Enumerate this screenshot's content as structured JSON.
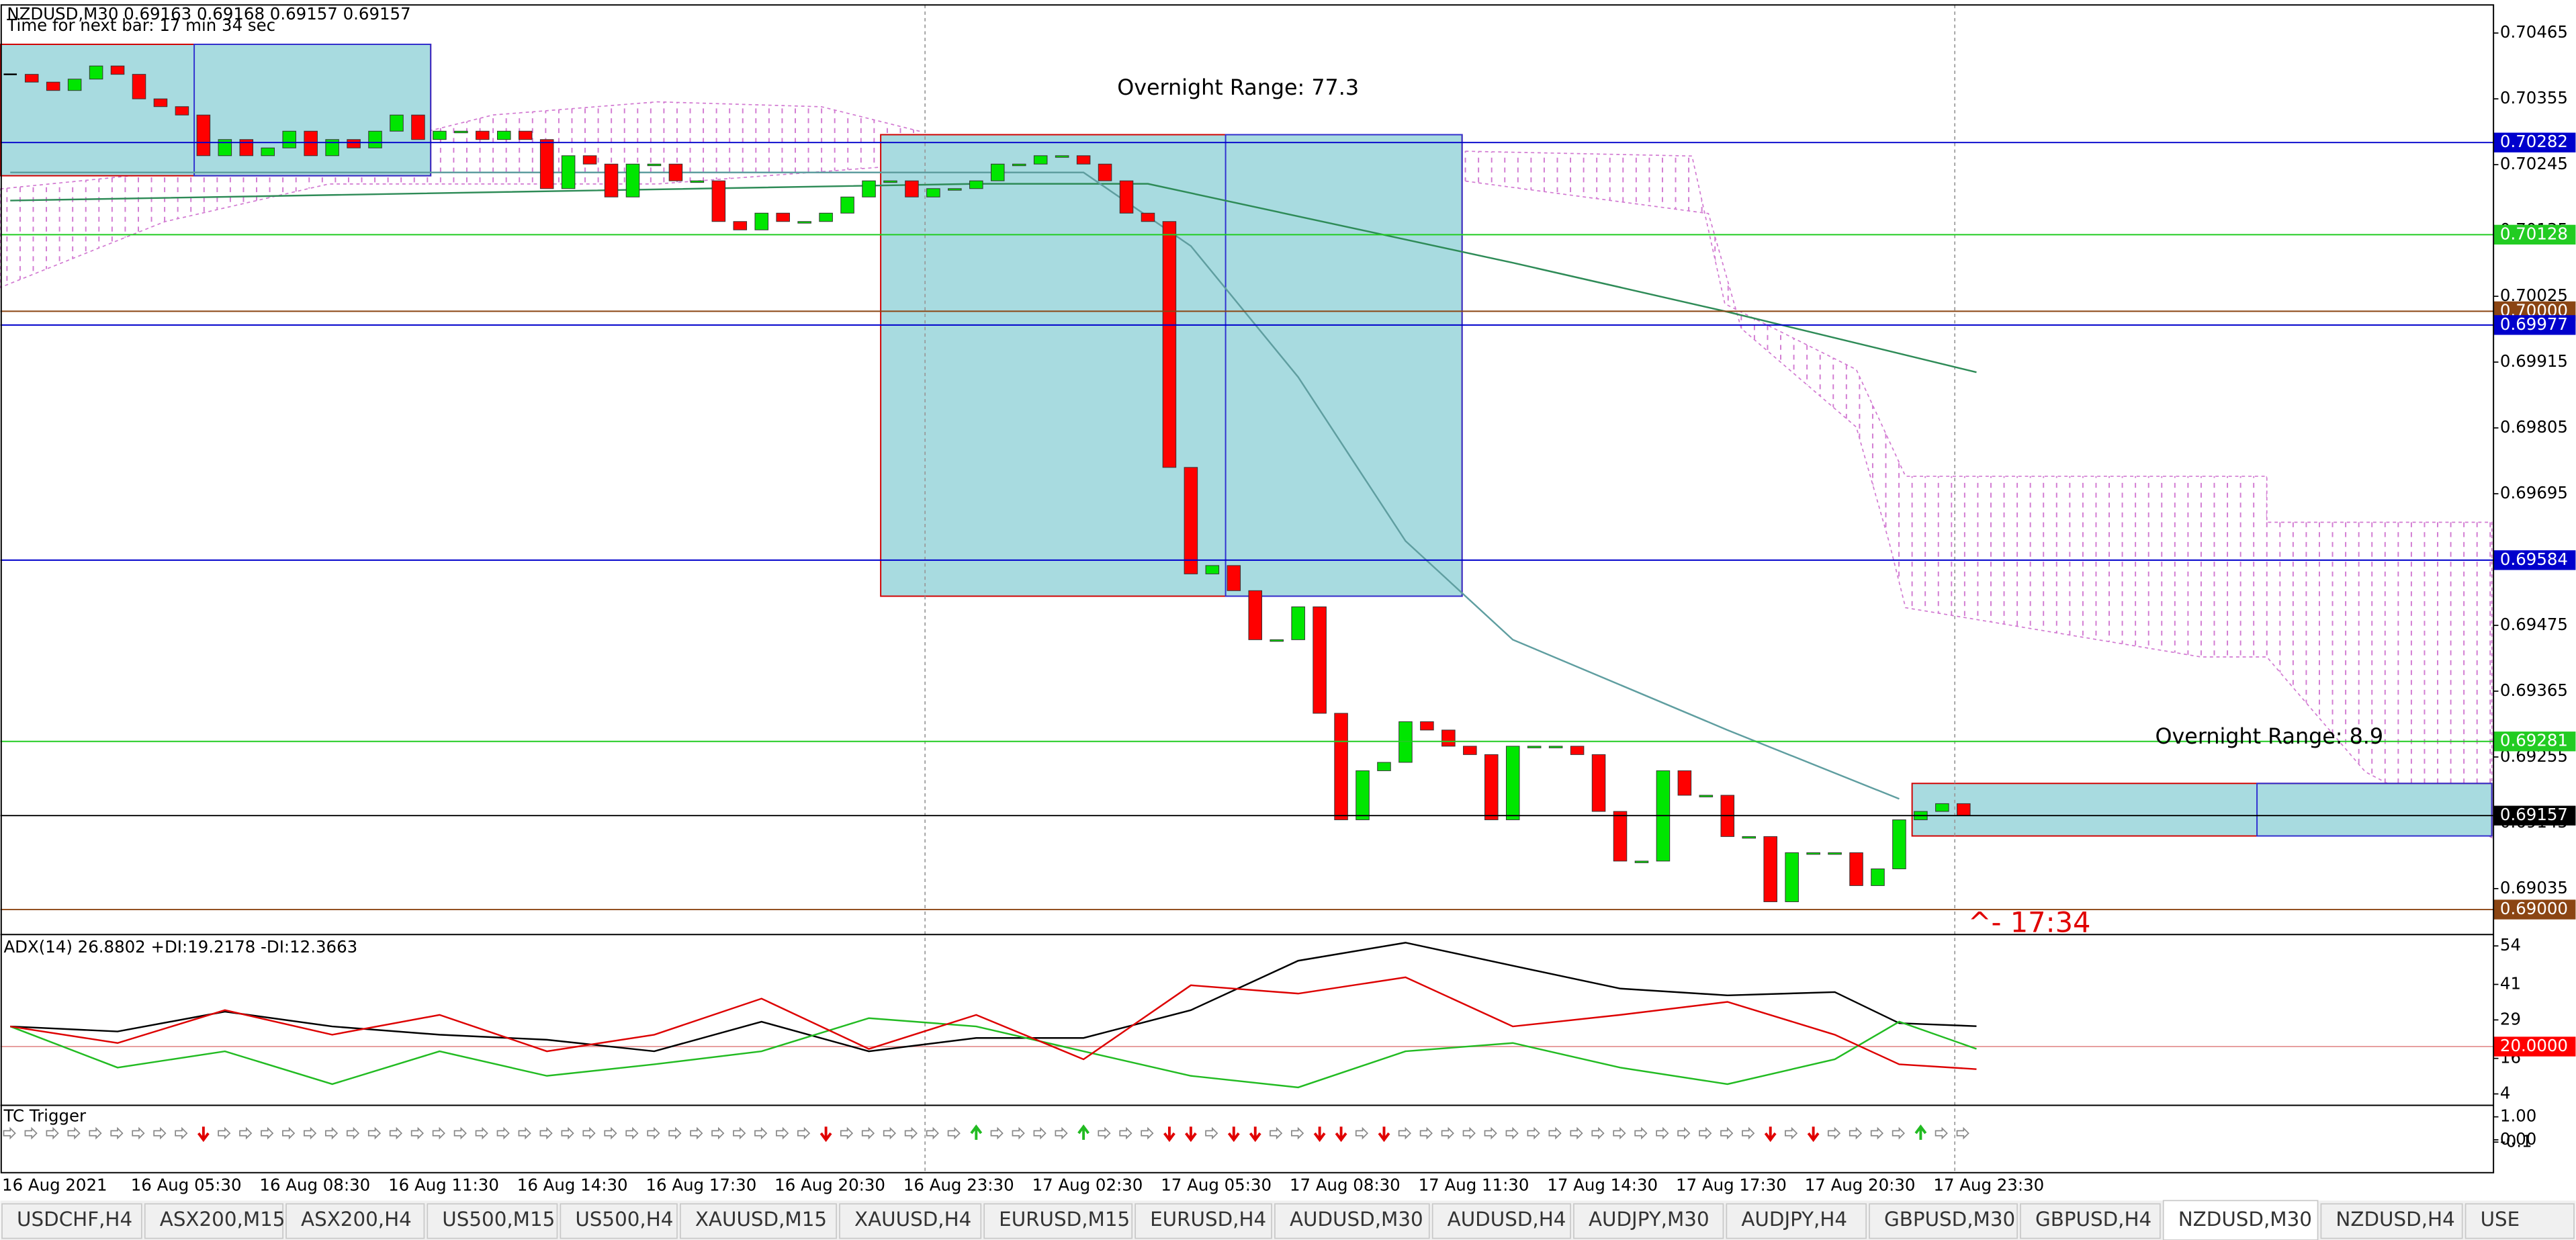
{
  "header": {
    "symbol_line": "NZDUSD,M30  0.69163 0.69168 0.69157 0.69157",
    "timer": "Time for next bar: 17 min 34 sec"
  },
  "chart_data": [
    {
      "type": "candlestick",
      "closes": [
        0.70396,
        0.70383,
        0.70369,
        0.70388,
        0.7041,
        0.70396,
        0.70355,
        0.70342,
        0.70328,
        0.7026,
        0.70287,
        0.7026,
        0.70273,
        0.70301,
        0.7026,
        0.70287,
        0.70273,
        0.70301,
        0.70328,
        0.70287,
        0.70301,
        0.70301,
        0.70287,
        0.70301,
        0.70287,
        0.70205,
        0.7026,
        0.70246,
        0.70191,
        0.70246,
        0.70246,
        0.70218,
        0.70218,
        0.7015,
        0.70136,
        0.70164,
        0.7015,
        0.7015,
        0.70164,
        0.70191,
        0.70218,
        0.70218,
        0.70191,
        0.70205,
        0.70205,
        0.70218,
        0.70246,
        0.70246,
        0.7026,
        0.7026,
        0.70246,
        0.70218,
        0.70164,
        0.7015,
        0.69739,
        0.69561,
        0.69575,
        0.69533,
        0.69451,
        0.69451,
        0.69506,
        0.69328,
        0.6915,
        0.69232,
        0.69246,
        0.69314,
        0.693,
        0.69273,
        0.69259,
        0.6915,
        0.69273,
        0.69273,
        0.69273,
        0.69259,
        0.69164,
        0.69081,
        0.69081,
        0.69232,
        0.69191,
        0.69191,
        0.69122,
        0.69122,
        0.69013,
        0.69095,
        0.69095,
        0.69095,
        0.6904,
        0.69068,
        0.6915,
        0.69164,
        0.69177,
        0.69157
      ],
      "up_color": "#00e600",
      "down_color": "#ff0000",
      "ylim": [
        0.68961,
        0.70512
      ],
      "yticks": [
        0.70465,
        0.70355,
        0.70245,
        0.70135,
        0.70025,
        0.69915,
        0.69805,
        0.69695,
        0.69585,
        0.69475,
        0.69365,
        0.69255,
        0.69145,
        0.69035
      ],
      "moving_averages": [
        {
          "color": "#2e8b57",
          "x": [
            0,
            45,
            53,
            70,
            80,
            91.6
          ],
          "values": [
            0.70185,
            0.70213,
            0.70213,
            0.70081,
            0.69999,
            0.69898
          ]
        },
        {
          "color": "#5f9ea0",
          "x": [
            0,
            50,
            55,
            60,
            65,
            70,
            80,
            88
          ],
          "values": [
            0.70232,
            0.70232,
            0.70109,
            0.6989,
            0.69616,
            0.69451,
            0.693,
            0.69185
          ]
        }
      ],
      "levels": [
        {
          "value": 0.70282,
          "color": "#0000cc"
        },
        {
          "value": 0.70128,
          "color": "#22cc22"
        },
        {
          "value": 0.7,
          "label": "0.70000",
          "color": "#8b4513"
        },
        {
          "value": 0.69977,
          "color": "#0000cc"
        },
        {
          "value": 0.69584,
          "color": "#0000cc"
        },
        {
          "value": 0.69281,
          "color": "#22cc22"
        },
        {
          "value": 0.69157,
          "color": "#000000"
        },
        {
          "value": 0.69,
          "label": "0.69000",
          "color": "#8b4513"
        }
      ],
      "annotations": [
        "Overnight Range: 77.3",
        "Overnight Range: 8.9",
        "^- 17:34"
      ],
      "x_labels": [
        "16 Aug 2021",
        "16 Aug 05:30",
        "16 Aug 08:30",
        "16 Aug 11:30",
        "16 Aug 14:30",
        "16 Aug 17:30",
        "16 Aug 20:30",
        "16 Aug 23:30",
        "17 Aug 02:30",
        "17 Aug 05:30",
        "17 Aug 08:30",
        "17 Aug 11:30",
        "17 Aug 14:30",
        "17 Aug 17:30",
        "17 Aug 20:30",
        "17 Aug 23:30"
      ]
    },
    {
      "type": "line",
      "title": "ADX(14) 26.8802 +DI:19.2178 -DI:12.3663",
      "x": [
        0,
        5,
        10,
        15,
        20,
        25,
        30,
        35,
        40,
        45,
        50,
        55,
        60,
        65,
        70,
        75,
        80,
        85,
        88,
        91.6
      ],
      "series": [
        {
          "color": "#000000",
          "values": [
            26.8,
            25.1,
            31.8,
            26.8,
            24,
            22.3,
            18.4,
            28.4,
            18.4,
            22.9,
            22.9,
            32.3,
            49,
            55.1,
            47.3,
            39.6,
            37.3,
            38.4,
            27.9,
            26.8802
          ]
        },
        {
          "color": "#22bb22",
          "values": [
            26.8,
            12.9,
            18.4,
            7.3,
            18.4,
            10.1,
            14,
            18.4,
            29.6,
            26.8,
            18.4,
            10.1,
            6.2,
            18.4,
            21.2,
            12.9,
            7.3,
            15.7,
            28.4,
            19.2178
          ]
        },
        {
          "color": "#dd0000",
          "values": [
            26.8,
            21.2,
            32.3,
            24,
            30.7,
            18.4,
            24,
            36.2,
            19.2,
            30.7,
            15.7,
            40.7,
            37.9,
            43.4,
            26.8,
            30.7,
            35.1,
            24,
            14,
            12.3663
          ]
        }
      ],
      "ylim": [
        0.7,
        57.3
      ],
      "yticks": [
        54,
        41,
        29,
        16,
        4
      ],
      "levels": [
        {
          "value": 20,
          "label": "20.0000",
          "color": "#ff0000"
        }
      ]
    },
    {
      "type": "signal",
      "title": "TC Trigger",
      "values": [
        0,
        0,
        0,
        0,
        0,
        0,
        0,
        0,
        0,
        -1,
        0,
        0,
        0,
        0,
        0,
        0,
        0,
        0,
        0,
        0,
        0,
        0,
        0,
        0,
        0,
        0,
        0,
        0,
        0,
        0,
        0,
        0,
        0,
        0,
        0,
        0,
        0,
        0,
        -1,
        0,
        0,
        0,
        0,
        0,
        0,
        1,
        0,
        0,
        0,
        0,
        1,
        0,
        0,
        0,
        -1,
        -1,
        0,
        -1,
        -1,
        0,
        0,
        -1,
        -1,
        0,
        -1,
        0,
        0,
        0,
        0,
        0,
        0,
        0,
        0,
        0,
        0,
        0,
        0,
        0,
        0,
        0,
        0,
        0,
        -1,
        0,
        -1,
        0,
        0,
        0,
        0,
        1,
        0,
        0
      ],
      "up_color": "#22bb22",
      "down_color": "#e00000",
      "flat_color": "#888888",
      "ylim": [
        -1.43,
        1.43
      ],
      "yticks": [
        {
          "value": 1,
          "label": "1.00"
        },
        {
          "value": 0,
          "label": "0.00"
        },
        {
          "value": -0.1,
          "label": "-0.1"
        }
      ]
    }
  ],
  "tabs": {
    "items": [
      "USDCHF,H4",
      "ASX200,M15",
      "ASX200,H4",
      "US500,M15",
      "US500,H4",
      "XAUUSD,M15",
      "XAUUSD,H4",
      "EURUSD,M15",
      "EURUSD,H4",
      "AUDUSD,M30",
      "AUDUSD,H4",
      "AUDJPY,M30",
      "AUDJPY,H4",
      "GBPUSD,M30",
      "GBPUSD,H4",
      "NZDUSD,M30",
      "NZDUSD,H4",
      "USE"
    ],
    "active": 15
  }
}
